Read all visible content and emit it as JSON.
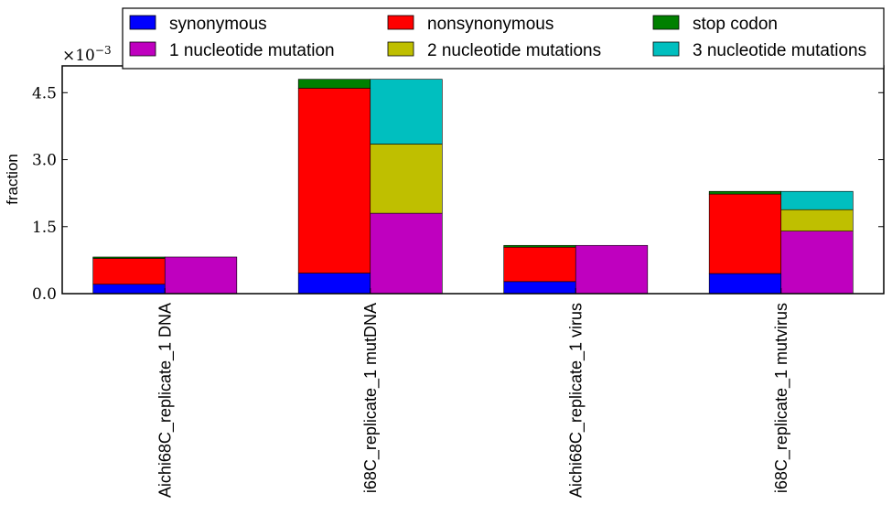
{
  "chart_data": {
    "type": "bar",
    "stacked": true,
    "ylabel": "fraction",
    "y_scale_label": "×10",
    "y_scale_exponent": "−3",
    "ylim": [
      0,
      0.0051
    ],
    "y_ticks": [
      0.0,
      0.0015,
      0.003,
      0.0045
    ],
    "y_tick_labels": [
      "0.0",
      "1.5",
      "3.0",
      "4.5"
    ],
    "categories": [
      "Aichi68C_replicate_1 DNA",
      "i68C_replicate_1 mutDNA",
      "Aichi68C_replicate_1 virus",
      "i68C_replicate_1 mutvirus"
    ],
    "legend_position": "top",
    "legend": [
      {
        "name": "synonymous",
        "color": "#0000ff"
      },
      {
        "name": "nonsynonymous",
        "color": "#ff0000"
      },
      {
        "name": "stop codon",
        "color": "#008000"
      },
      {
        "name": "1 nucleotide mutation",
        "color": "#bf00bf"
      },
      {
        "name": "2 nucleotide mutations",
        "color": "#bfbf00"
      },
      {
        "name": "3 nucleotide mutations",
        "color": "#00bfbf"
      }
    ],
    "mutation_type_series": [
      {
        "name": "synonymous",
        "color": "#0000ff",
        "values": [
          0.00021,
          0.00046,
          0.00027,
          0.00045
        ]
      },
      {
        "name": "nonsynonymous",
        "color": "#ff0000",
        "values": [
          0.00058,
          0.00414,
          0.00077,
          0.00178
        ]
      },
      {
        "name": "stop codon",
        "color": "#008000",
        "values": [
          3e-05,
          0.0002,
          4e-05,
          6e-05
        ]
      }
    ],
    "nucleotide_series": [
      {
        "name": "1 nucleotide mutation",
        "color": "#bf00bf",
        "values": [
          0.00082,
          0.0018,
          0.00108,
          0.0014
        ]
      },
      {
        "name": "2 nucleotide mutations",
        "color": "#bfbf00",
        "values": [
          0.0,
          0.00155,
          0.0,
          0.00048
        ]
      },
      {
        "name": "3 nucleotide mutations",
        "color": "#00bfbf",
        "values": [
          0.0,
          0.00145,
          0.0,
          0.00041
        ]
      }
    ]
  }
}
